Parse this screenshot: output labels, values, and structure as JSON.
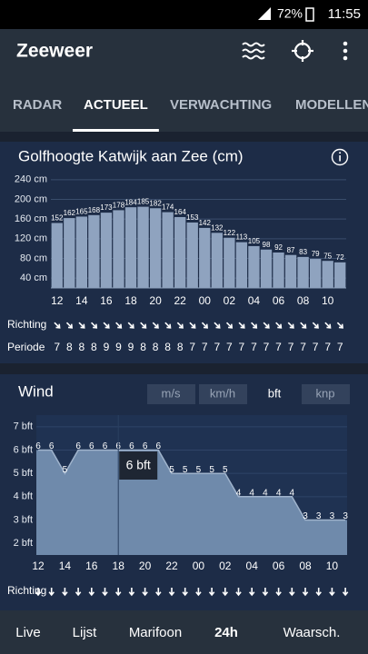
{
  "status_bar": {
    "battery": "72%",
    "time": "11:55"
  },
  "app_bar": {
    "title": "Zeeweer"
  },
  "tabs": {
    "items": [
      "RADAR",
      "ACTUEEL",
      "VERWACHTING",
      "MODELLEN"
    ],
    "active": "ACTUEEL"
  },
  "chart_data": [
    {
      "type": "bar",
      "title": "Golfhoogte Katwijk aan Zee (cm)",
      "categories": [
        "12",
        null,
        "14",
        null,
        "16",
        null,
        "18",
        null,
        "20",
        null,
        "22",
        null,
        "00",
        null,
        "02",
        null,
        "04",
        null,
        "06",
        null,
        "08",
        null,
        "10",
        null
      ],
      "values": [
        152,
        162,
        165,
        168,
        173,
        178,
        184,
        185,
        182,
        174,
        164,
        153,
        142,
        132,
        122,
        113,
        105,
        98,
        92,
        87,
        83,
        79,
        75,
        72
      ],
      "color": "#8fa3bf",
      "ylim": [
        20,
        260
      ],
      "yticks": [
        {
          "value": 40,
          "label": "40 cm"
        },
        {
          "value": 80,
          "label": "80 cm"
        },
        {
          "value": 120,
          "label": "120 cm"
        },
        {
          "value": 160,
          "label": "160 cm"
        },
        {
          "value": 200,
          "label": "200 cm"
        },
        {
          "value": 240,
          "label": "240 cm"
        }
      ],
      "grid": true,
      "direction_label": "Richting",
      "period_label": "Periode",
      "periods": [
        7,
        8,
        8,
        8,
        9,
        9,
        9,
        8,
        8,
        8,
        8,
        7,
        7,
        7,
        7,
        7,
        7,
        7,
        7,
        7,
        7,
        7,
        7,
        7
      ]
    },
    {
      "type": "area",
      "title": "Wind",
      "units": [
        "m/s",
        "km/h",
        "bft",
        "knp"
      ],
      "selected_unit": "bft",
      "categories": [
        "12",
        null,
        "14",
        null,
        "16",
        null,
        "18",
        null,
        "20",
        null,
        "22",
        null,
        "00",
        null,
        "02",
        null,
        "04",
        null,
        "06",
        null,
        "08",
        null,
        "10",
        null
      ],
      "values": [
        6,
        6,
        5,
        6,
        6,
        6,
        6,
        6,
        6,
        6,
        5,
        5,
        5,
        5,
        5,
        4,
        4,
        4,
        4,
        4,
        3,
        3,
        3,
        3
      ],
      "color": "#6f8aab",
      "ylim": [
        1.5,
        7.5
      ],
      "yticks": [
        {
          "value": 2,
          "label": "2 bft"
        },
        {
          "value": 3,
          "label": "3 bft"
        },
        {
          "value": 4,
          "label": "4 bft"
        },
        {
          "value": 5,
          "label": "5 bft"
        },
        {
          "value": 6,
          "label": "6 bft"
        },
        {
          "value": 7,
          "label": "7 bft"
        }
      ],
      "grid": true,
      "tooltip": {
        "category": "18",
        "label": "6 bft"
      },
      "direction_label": "Richting"
    }
  ],
  "bottom_nav": {
    "items": [
      "Live",
      "Lijst",
      "Marifoon",
      "24h",
      "Waarsch."
    ],
    "active": "24h"
  }
}
